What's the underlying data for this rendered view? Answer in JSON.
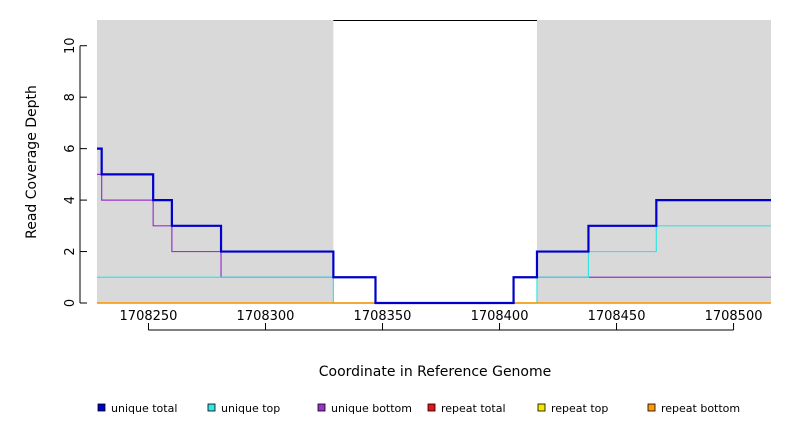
{
  "chart_data": {
    "type": "line",
    "step": true,
    "xlabel": "Coordinate in Reference Genome",
    "ylabel": "Read Coverage Depth",
    "xlim": [
      1708228,
      1708516
    ],
    "ylim": [
      0,
      11
    ],
    "x_ticks": [
      1708250,
      1708300,
      1708350,
      1708400,
      1708450,
      1708500
    ],
    "y_ticks": [
      0,
      2,
      4,
      6,
      8,
      10
    ],
    "background": "#d9d9d9",
    "gap_region": {
      "x_start": 1708329,
      "x_end": 1708416,
      "fill": "#ffffff"
    },
    "series": [
      {
        "name": "unique bottom",
        "color": "#9933cc",
        "width": 1.2,
        "steps": [
          [
            1708228,
            5
          ],
          [
            1708230,
            4
          ],
          [
            1708252,
            3
          ],
          [
            1708260,
            2
          ],
          [
            1708281,
            1
          ],
          [
            1708329,
            1
          ],
          [
            1708347,
            0
          ],
          [
            1708406,
            1
          ],
          [
            1708516,
            1
          ]
        ]
      },
      {
        "name": "unique top",
        "color": "#33e5e5",
        "width": 1.2,
        "steps": [
          [
            1708228,
            1
          ],
          [
            1708281,
            1
          ],
          [
            1708329,
            0
          ],
          [
            1708406,
            0
          ],
          [
            1708416,
            1
          ],
          [
            1708438,
            2
          ],
          [
            1708467,
            3
          ],
          [
            1708516,
            3
          ]
        ]
      },
      {
        "name": "repeat total",
        "color": "#ee1111",
        "width": 1.2,
        "steps": [
          [
            1708228,
            0
          ],
          [
            1708516,
            0
          ]
        ]
      },
      {
        "name": "repeat top",
        "color": "#f5e800",
        "width": 1.2,
        "steps": [
          [
            1708228,
            0
          ],
          [
            1708516,
            0
          ]
        ]
      },
      {
        "name": "repeat bottom",
        "color": "#ff9900",
        "width": 1.2,
        "steps": [
          [
            1708228,
            0
          ],
          [
            1708516,
            0
          ]
        ]
      },
      {
        "name": "unique total",
        "color": "#0000cc",
        "width": 2.2,
        "steps": [
          [
            1708228,
            6
          ],
          [
            1708230,
            5
          ],
          [
            1708252,
            4
          ],
          [
            1708260,
            3
          ],
          [
            1708281,
            2
          ],
          [
            1708329,
            1
          ],
          [
            1708347,
            0
          ],
          [
            1708406,
            1
          ],
          [
            1708416,
            2
          ],
          [
            1708438,
            3
          ],
          [
            1708467,
            4
          ],
          [
            1708516,
            4
          ]
        ]
      }
    ],
    "legend": {
      "placement": "bottom",
      "items": [
        {
          "name": "unique total",
          "color": "#0000cc"
        },
        {
          "name": "unique top",
          "color": "#33e5e5"
        },
        {
          "name": "unique bottom",
          "color": "#9933cc"
        },
        {
          "name": "repeat total",
          "color": "#ee1111"
        },
        {
          "name": "repeat top",
          "color": "#f5e800"
        },
        {
          "name": "repeat bottom",
          "color": "#ff9900"
        }
      ]
    }
  }
}
